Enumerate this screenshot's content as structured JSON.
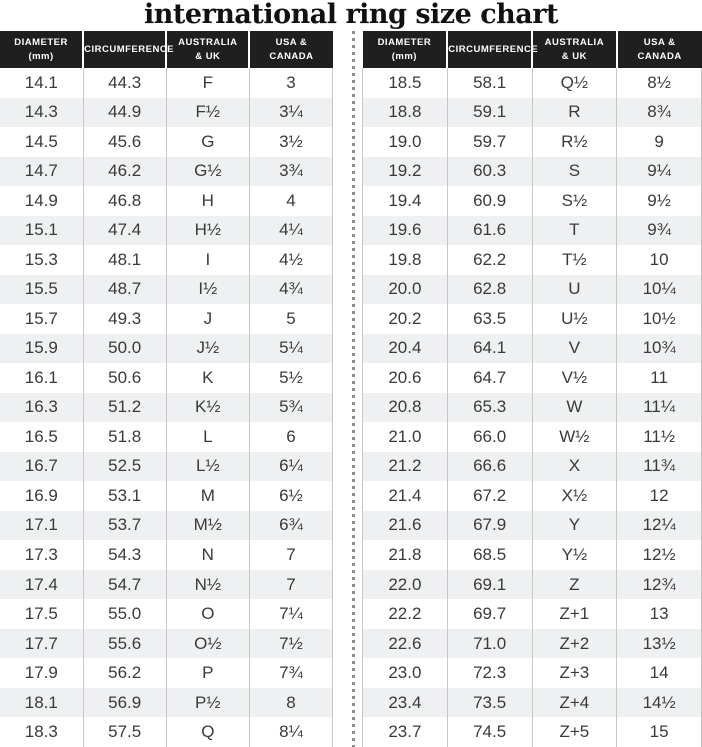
{
  "title": "international ring size chart",
  "table_headers": [
    {
      "label": "DIAMETER\n(mm)"
    },
    {
      "label": "CIRCUMFERENCE"
    },
    {
      "label": "AUSTRALIA\n& UK"
    },
    {
      "label": "USA &\nCANADA"
    }
  ],
  "chart_data": {
    "type": "table",
    "title": "international ring size chart",
    "columns": [
      "Diameter (mm)",
      "Circumference",
      "Australia & UK",
      "USA & Canada"
    ],
    "left_table_rows": [
      [
        "14.1",
        "44.3",
        "F",
        "3"
      ],
      [
        "14.3",
        "44.9",
        "F½",
        "3¼"
      ],
      [
        "14.5",
        "45.6",
        "G",
        "3½"
      ],
      [
        "14.7",
        "46.2",
        "G½",
        "3¾"
      ],
      [
        "14.9",
        "46.8",
        "H",
        "4"
      ],
      [
        "15.1",
        "47.4",
        "H½",
        "4¼"
      ],
      [
        "15.3",
        "48.1",
        "I",
        "4½"
      ],
      [
        "15.5",
        "48.7",
        "I½",
        "4¾"
      ],
      [
        "15.7",
        "49.3",
        "J",
        "5"
      ],
      [
        "15.9",
        "50.0",
        "J½",
        "5¼"
      ],
      [
        "16.1",
        "50.6",
        "K",
        "5½"
      ],
      [
        "16.3",
        "51.2",
        "K½",
        "5¾"
      ],
      [
        "16.5",
        "51.8",
        "L",
        "6"
      ],
      [
        "16.7",
        "52.5",
        "L½",
        "6¼"
      ],
      [
        "16.9",
        "53.1",
        "M",
        "6½"
      ],
      [
        "17.1",
        "53.7",
        "M½",
        "6¾"
      ],
      [
        "17.3",
        "54.3",
        "N",
        "7"
      ],
      [
        "17.4",
        "54.7",
        "N½",
        "7"
      ],
      [
        "17.5",
        "55.0",
        "O",
        "7¼"
      ],
      [
        "17.7",
        "55.6",
        "O½",
        "7½"
      ],
      [
        "17.9",
        "56.2",
        "P",
        "7¾"
      ],
      [
        "18.1",
        "56.9",
        "P½",
        "8"
      ],
      [
        "18.3",
        "57.5",
        "Q",
        "8¼"
      ]
    ],
    "right_table_rows": [
      [
        "18.5",
        "58.1",
        "Q½",
        "8½"
      ],
      [
        "18.8",
        "59.1",
        "R",
        "8¾"
      ],
      [
        "19.0",
        "59.7",
        "R½",
        "9"
      ],
      [
        "19.2",
        "60.3",
        "S",
        "9¼"
      ],
      [
        "19.4",
        "60.9",
        "S½",
        "9½"
      ],
      [
        "19.6",
        "61.6",
        "T",
        "9¾"
      ],
      [
        "19.8",
        "62.2",
        "T½",
        "10"
      ],
      [
        "20.0",
        "62.8",
        "U",
        "10¼"
      ],
      [
        "20.2",
        "63.5",
        "U½",
        "10½"
      ],
      [
        "20.4",
        "64.1",
        "V",
        "10¾"
      ],
      [
        "20.6",
        "64.7",
        "V½",
        "11"
      ],
      [
        "20.8",
        "65.3",
        "W",
        "11¼"
      ],
      [
        "21.0",
        "66.0",
        "W½",
        "11½"
      ],
      [
        "21.2",
        "66.6",
        "X",
        "11¾"
      ],
      [
        "21.4",
        "67.2",
        "X½",
        "12"
      ],
      [
        "21.6",
        "67.9",
        "Y",
        "12¼"
      ],
      [
        "21.8",
        "68.5",
        "Y½",
        "12½"
      ],
      [
        "22.0",
        "69.1",
        "Z",
        "12¾"
      ],
      [
        "22.2",
        "69.7",
        "Z+1",
        "13"
      ],
      [
        "22.6",
        "71.0",
        "Z+2",
        "13½"
      ],
      [
        "23.0",
        "72.3",
        "Z+3",
        "14"
      ],
      [
        "23.4",
        "73.5",
        "Z+4",
        "14½"
      ],
      [
        "23.7",
        "74.5",
        "Z+5",
        "15"
      ]
    ]
  },
  "colors": {
    "title_text": "#111111",
    "header_bg": "#1f1f1f",
    "header_text": "#ffffff",
    "row_alt_bg": "#eef0f1",
    "column_border": "#c6c6c6",
    "body_text": "#3a3a3a",
    "divider_dots": "#8d8d8d"
  }
}
